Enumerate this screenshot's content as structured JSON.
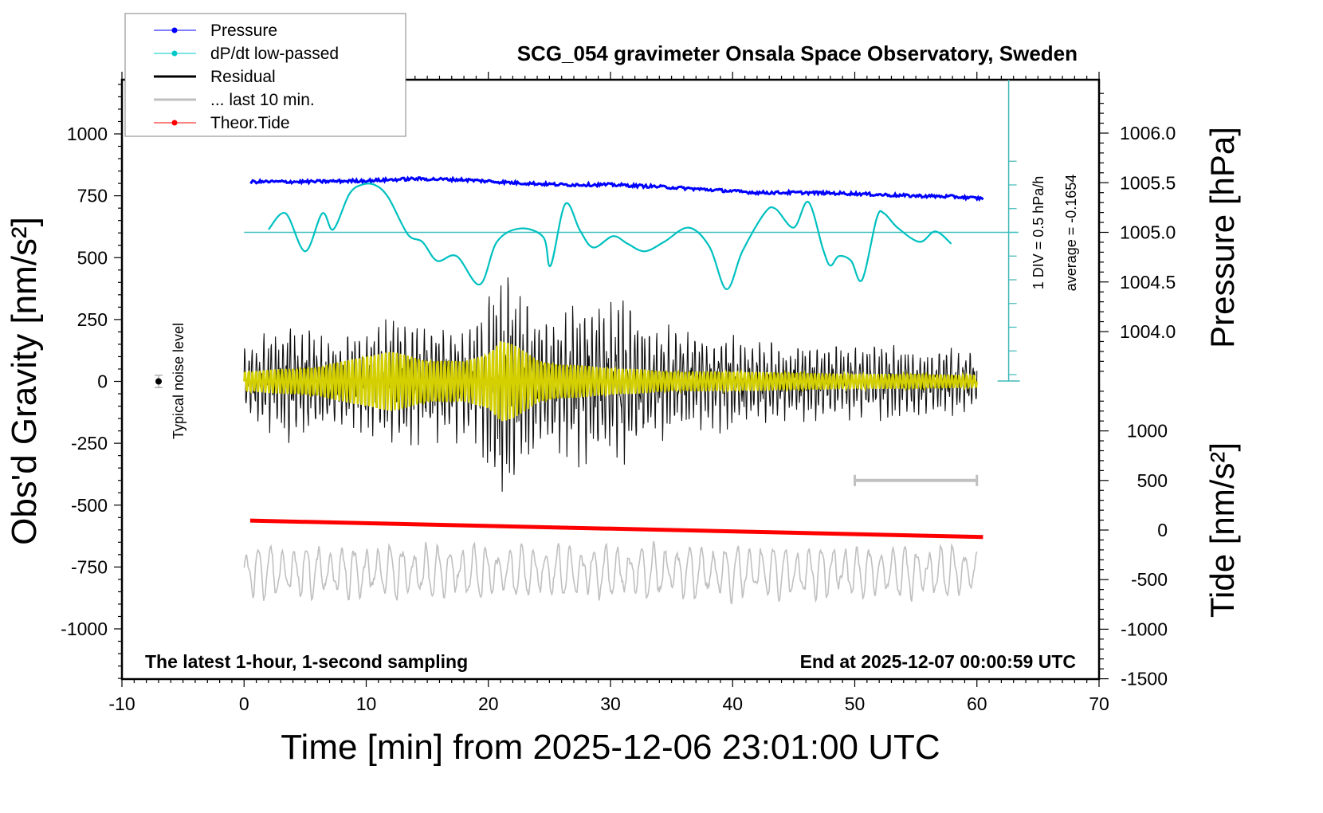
{
  "chart_data": {
    "type": "line",
    "title": "SCG_054 gravimeter Onsala Space Observatory, Sweden",
    "xlabel": "Time [min] from 2025-12-06 23:01:00 UTC",
    "ylabel_left": "Obs'd Gravity [nm/s²]",
    "ylabel_right_top": "Pressure [hPa]",
    "ylabel_right_bottom": "Tide [nm/s²]",
    "xlim": [
      -10,
      70
    ],
    "xticks": [
      -10,
      0,
      10,
      20,
      30,
      40,
      50,
      60,
      70
    ],
    "ylim_left": [
      -1250,
      1250
    ],
    "yticks_left": [
      1000,
      750,
      500,
      250,
      0,
      -250,
      -500,
      -750,
      -1000
    ],
    "pressure_ticks": [
      "1006.0",
      "1005.5",
      "1005.0",
      "1004.5",
      "1004.0"
    ],
    "tide_ticks": [
      1000,
      500,
      0,
      -500,
      -1000,
      -1500
    ],
    "annotations": {
      "bottom_left": "The latest 1-hour, 1-second sampling",
      "bottom_right": "End at 2025-12-07 00:00:59 UTC",
      "noise_label": "Typical noise level",
      "div_label": "1 DIV = 0.5 hPa/h",
      "average_label": "average = -0.1654"
    },
    "legend": {
      "placement": "top-left",
      "entries": [
        {
          "label": "Pressure",
          "color": "#0000ff",
          "marker": true
        },
        {
          "label": "dP/dt low-passed",
          "color": "#00c8c8",
          "marker": true
        },
        {
          "label": "Residual",
          "color": "#000000",
          "marker": false
        },
        {
          "label": "... last 10 min.",
          "color": "#c0c0c0",
          "marker": false
        },
        {
          "label": "Theor.Tide",
          "color": "#ff0000",
          "marker": true
        }
      ]
    },
    "series": [
      {
        "name": "Pressure",
        "unit": "hPa",
        "color": "#0000ff",
        "x": [
          0.5,
          5,
          10,
          14,
          18,
          22,
          26,
          30,
          34,
          38,
          42,
          46,
          50,
          54,
          58,
          60.5
        ],
        "values": [
          1005.51,
          1005.51,
          1005.52,
          1005.54,
          1005.53,
          1005.5,
          1005.48,
          1005.48,
          1005.46,
          1005.43,
          1005.4,
          1005.4,
          1005.39,
          1005.37,
          1005.36,
          1005.34
        ]
      },
      {
        "name": "dP/dt low-passed",
        "unit": "hPa/h (0.5 per div, zero line at 1005.0 level)",
        "color": "#00c0c0",
        "x": [
          2.0,
          3.4,
          5.0,
          6.4,
          7.3,
          8.6,
          9.6,
          10.7,
          11.8,
          13.4,
          14.6,
          15.8,
          17.4,
          19.3,
          20.7,
          22.6,
          24.5,
          25.1,
          26.3,
          27.5,
          28.6,
          30.2,
          31.4,
          32.8,
          34.4,
          36.4,
          38.1,
          39.5,
          40.8,
          42.6,
          43.5,
          45.0,
          46.2,
          47.4,
          48.0,
          48.7,
          49.7,
          50.6,
          51.8,
          52.4,
          53.5,
          55.3,
          56.6,
          57.9
        ],
        "values": [
          0.03,
          0.2,
          -0.2,
          0.2,
          0.03,
          0.4,
          0.5,
          0.5,
          0.37,
          -0.02,
          -0.1,
          -0.3,
          -0.25,
          -0.55,
          -0.1,
          0.04,
          -0.05,
          -0.35,
          0.3,
          0.02,
          -0.16,
          -0.04,
          -0.12,
          -0.2,
          -0.1,
          0.05,
          -0.15,
          -0.6,
          -0.2,
          0.2,
          0.25,
          0.05,
          0.32,
          -0.18,
          -0.35,
          -0.25,
          -0.3,
          -0.5,
          0.15,
          0.2,
          0.05,
          -0.1,
          0.01,
          -0.12
        ]
      },
      {
        "name": "Residual",
        "unit": "nm/s²",
        "color": "#000000",
        "envelope_x": [
          0,
          2,
          4,
          6,
          8,
          10,
          12,
          14,
          16,
          18,
          19.5,
          20.5,
          21.5,
          22.5,
          24,
          26,
          28,
          29.5,
          31,
          33,
          35,
          37,
          39,
          41,
          43,
          45,
          47,
          49,
          51,
          53,
          55,
          57,
          59,
          60
        ],
        "envelope_amplitude": [
          120,
          200,
          220,
          180,
          160,
          200,
          260,
          230,
          210,
          220,
          280,
          420,
          480,
          360,
          260,
          260,
          300,
          290,
          310,
          220,
          200,
          170,
          180,
          160,
          150,
          130,
          150,
          140,
          130,
          140,
          120,
          120,
          130,
          110
        ]
      },
      {
        "name": "Residual (filtered, yellow)",
        "unit": "nm/s²",
        "color": "#d4d000",
        "envelope_x": [
          0,
          3,
          6,
          8,
          10,
          12,
          15,
          18,
          20,
          21,
          22,
          24,
          26,
          29,
          32,
          35,
          40,
          45,
          50,
          55,
          60
        ],
        "envelope_amplitude": [
          40,
          50,
          60,
          80,
          110,
          120,
          90,
          80,
          120,
          170,
          150,
          90,
          70,
          60,
          50,
          40,
          40,
          35,
          30,
          30,
          25
        ]
      },
      {
        "name": "Theor.Tide",
        "unit": "nm/s²",
        "color": "#ff0000",
        "x": [
          0.5,
          60.5
        ],
        "values": [
          95,
          -70
        ]
      },
      {
        "name": "... last 10 min.",
        "unit": "nm/s² (Tide axis)",
        "color": "#c0c0c0",
        "x_range": [
          0,
          60
        ],
        "amplitude_range": [
          -800,
          0
        ]
      }
    ],
    "noise_level": {
      "x": -7,
      "value": 0,
      "error": 25
    },
    "last10_marker": {
      "x_start": 50,
      "x_end": 60,
      "tide_value": 500
    }
  }
}
